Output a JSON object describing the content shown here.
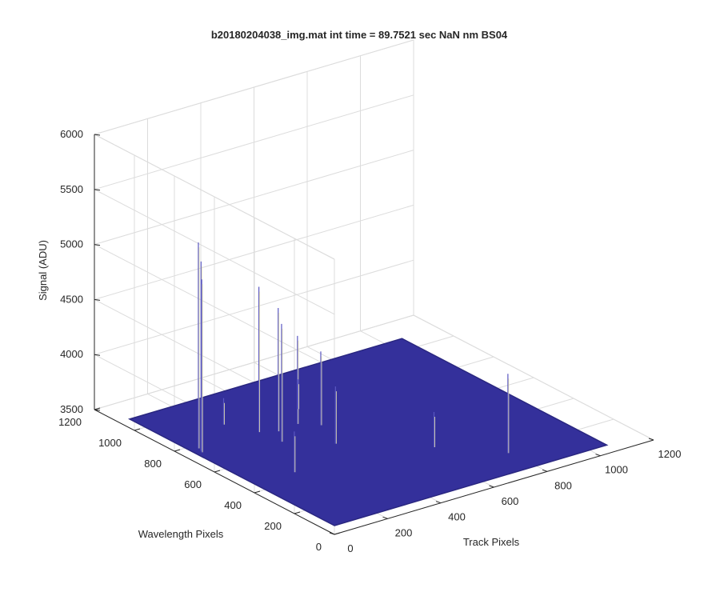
{
  "chart_data": {
    "type": "surface",
    "title": "b20180204038_img.mat int time = 89.7521 sec  NaN nm BS04",
    "xlabel": "Track Pixels",
    "ylabel": "Wavelength Pixels",
    "zlabel": "Signal (ADU)",
    "xlim": [
      0,
      1200
    ],
    "ylim": [
      0,
      1200
    ],
    "zlim": [
      3500,
      6000
    ],
    "xticks": [
      0,
      200,
      400,
      600,
      800,
      1000,
      1200
    ],
    "yticks": [
      0,
      200,
      400,
      600,
      800,
      1000,
      1200
    ],
    "zticks": [
      3500,
      4000,
      4500,
      5000,
      5500,
      6000
    ],
    "grid": true,
    "surface_extent": {
      "x": [
        0,
        1024
      ],
      "y": [
        0,
        1024
      ]
    },
    "baseline_signal": 3580,
    "surface_color": "#34309b",
    "spike_color": "#5a57c2",
    "spikes": [
      {
        "x": 30,
        "y": 720,
        "z": 5450
      },
      {
        "x": 25,
        "y": 700,
        "z": 5300
      },
      {
        "x": 20,
        "y": 690,
        "z": 5150
      },
      {
        "x": 250,
        "y": 710,
        "z": 4900
      },
      {
        "x": 300,
        "y": 680,
        "z": 4700
      },
      {
        "x": 260,
        "y": 610,
        "z": 4650
      },
      {
        "x": 380,
        "y": 690,
        "z": 4380
      },
      {
        "x": 750,
        "y": 130,
        "z": 4300
      },
      {
        "x": 430,
        "y": 640,
        "z": 4250
      },
      {
        "x": 380,
        "y": 500,
        "z": 4100
      },
      {
        "x": 150,
        "y": 400,
        "z": 3950
      },
      {
        "x": 600,
        "y": 300,
        "z": 3900
      },
      {
        "x": 450,
        "y": 780,
        "z": 3850
      },
      {
        "x": 200,
        "y": 820,
        "z": 3820
      }
    ]
  }
}
